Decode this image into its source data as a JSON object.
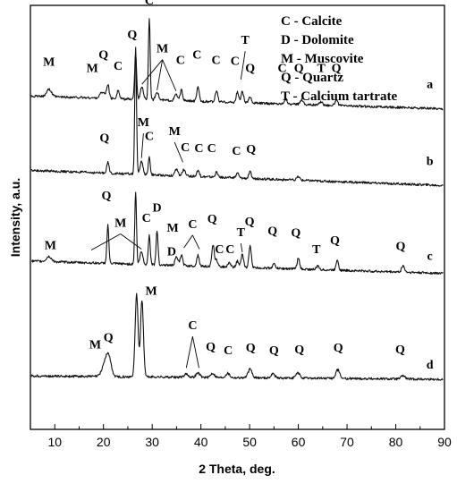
{
  "chart_data": {
    "type": "line",
    "xlabel": "2 Theta, deg.",
    "ylabel": "Intensity, a.u.",
    "xlim": [
      5,
      90
    ],
    "ylim": [
      0,
      100
    ],
    "x_ticks": [
      10,
      20,
      30,
      40,
      50,
      60,
      70,
      80,
      90
    ],
    "grid": false,
    "legend_position": "top-right",
    "legend": [
      {
        "text": "C - Calcite"
      },
      {
        "text": "D - Dolomite"
      },
      {
        "text": "M - Muscovite"
      },
      {
        "text": "Q - Quartz"
      },
      {
        "text": "T - Calcium tartrate"
      }
    ],
    "series": [
      {
        "name": "a",
        "baseline_start": 78.6,
        "baseline_end": 75.6,
        "peaks": [
          {
            "x": 8.8,
            "h": 1.8,
            "w": 0.5
          },
          {
            "x": 19.8,
            "h": 1.5,
            "w": 0.5
          },
          {
            "x": 20.9,
            "h": 3.2,
            "w": 0.25
          },
          {
            "x": 23.0,
            "h": 2.0,
            "w": 0.25
          },
          {
            "x": 26.6,
            "h": 11.0,
            "w": 0.2
          },
          {
            "x": 27.9,
            "h": 3.0,
            "w": 0.3
          },
          {
            "x": 29.4,
            "h": 19.2,
            "w": 0.18
          },
          {
            "x": 31.0,
            "h": 2.0,
            "w": 0.3
          },
          {
            "x": 34.9,
            "h": 1.5,
            "w": 0.3
          },
          {
            "x": 36.0,
            "h": 2.5,
            "w": 0.25
          },
          {
            "x": 39.4,
            "h": 3.2,
            "w": 0.25
          },
          {
            "x": 43.2,
            "h": 2.7,
            "w": 0.25
          },
          {
            "x": 47.5,
            "h": 2.5,
            "w": 0.25
          },
          {
            "x": 48.5,
            "h": 2.7,
            "w": 0.25
          },
          {
            "x": 50.1,
            "h": 1.5,
            "w": 0.25
          },
          {
            "x": 57.4,
            "h": 1.2,
            "w": 0.3
          },
          {
            "x": 60.7,
            "h": 1.2,
            "w": 0.3
          },
          {
            "x": 64.7,
            "h": 0.8,
            "w": 0.3
          },
          {
            "x": 67.8,
            "h": 1.2,
            "w": 0.3
          }
        ],
        "labels": [
          {
            "text": "M",
            "x": 8.8,
            "y": 85.8
          },
          {
            "text": "M",
            "x": 17.7,
            "y": 84.3
          },
          {
            "text": "Q",
            "x": 20.0,
            "y": 87.5
          },
          {
            "text": "C",
            "x": 23.0,
            "y": 84.8
          },
          {
            "text": "Q",
            "x": 25.9,
            "y": 92.2
          },
          {
            "text": "C",
            "x": 29.4,
            "y": 100.2
          },
          {
            "text": "M",
            "x": 32.1,
            "y": 88.9
          },
          {
            "text": "C",
            "x": 35.8,
            "y": 86.2
          },
          {
            "text": "C",
            "x": 39.2,
            "y": 87.5
          },
          {
            "text": "C",
            "x": 43.1,
            "y": 86.2
          },
          {
            "text": "C",
            "x": 47.0,
            "y": 86.0
          },
          {
            "text": "T",
            "x": 49.1,
            "y": 90.9
          },
          {
            "text": "Q",
            "x": 50.1,
            "y": 84.3
          },
          {
            "text": "C",
            "x": 56.7,
            "y": 84.3
          },
          {
            "text": "Q",
            "x": 60.1,
            "y": 84.3
          },
          {
            "text": "T",
            "x": 64.7,
            "y": 84.3
          },
          {
            "text": "Q",
            "x": 67.8,
            "y": 84.3
          },
          {
            "text": "a",
            "x": 87.0,
            "y": 80.5
          }
        ]
      },
      {
        "name": "b",
        "baseline_start": 61.1,
        "baseline_end": 57.5,
        "peaks": [
          {
            "x": 20.9,
            "h": 2.5,
            "w": 0.25
          },
          {
            "x": 26.6,
            "h": 30.0,
            "w": 0.18
          },
          {
            "x": 27.8,
            "h": 3.0,
            "w": 0.3
          },
          {
            "x": 29.4,
            "h": 4.0,
            "w": 0.2
          },
          {
            "x": 35.0,
            "h": 1.5,
            "w": 0.3
          },
          {
            "x": 36.5,
            "h": 1.5,
            "w": 0.3
          },
          {
            "x": 39.4,
            "h": 1.5,
            "w": 0.25
          },
          {
            "x": 43.2,
            "h": 1.2,
            "w": 0.25
          },
          {
            "x": 47.5,
            "h": 1.2,
            "w": 0.25
          },
          {
            "x": 50.1,
            "h": 1.5,
            "w": 0.25
          },
          {
            "x": 60.0,
            "h": 0.8,
            "w": 0.3
          }
        ],
        "labels": [
          {
            "text": "Q",
            "x": 20.2,
            "y": 67.8
          },
          {
            "text": "M",
            "x": 28.2,
            "y": 71.5
          },
          {
            "text": "C",
            "x": 29.4,
            "y": 68.3
          },
          {
            "text": "M",
            "x": 34.6,
            "y": 69.4
          },
          {
            "text": "C",
            "x": 36.8,
            "y": 65.6
          },
          {
            "text": "C",
            "x": 39.6,
            "y": 65.4
          },
          {
            "text": "C",
            "x": 42.2,
            "y": 65.4
          },
          {
            "text": "C",
            "x": 47.3,
            "y": 64.8
          },
          {
            "text": "Q",
            "x": 50.3,
            "y": 65.2
          },
          {
            "text": "b",
            "x": 87.0,
            "y": 62.3
          }
        ]
      },
      {
        "name": "c",
        "baseline_start": 39.7,
        "baseline_end": 36.8,
        "peaks": [
          {
            "x": 8.8,
            "h": 1.2,
            "w": 0.5
          },
          {
            "x": 20.9,
            "h": 9.0,
            "w": 0.2
          },
          {
            "x": 26.6,
            "h": 17.0,
            "w": 0.18
          },
          {
            "x": 27.8,
            "h": 3.0,
            "w": 0.3
          },
          {
            "x": 29.4,
            "h": 7.0,
            "w": 0.2
          },
          {
            "x": 31.0,
            "h": 8.0,
            "w": 0.2
          },
          {
            "x": 35.0,
            "h": 2.0,
            "w": 0.3
          },
          {
            "x": 36.0,
            "h": 2.5,
            "w": 0.25
          },
          {
            "x": 39.4,
            "h": 2.5,
            "w": 0.25
          },
          {
            "x": 42.5,
            "h": 5.0,
            "w": 0.25
          },
          {
            "x": 43.2,
            "h": 1.5,
            "w": 0.25
          },
          {
            "x": 45.8,
            "h": 1.2,
            "w": 0.25
          },
          {
            "x": 47.5,
            "h": 1.5,
            "w": 0.25
          },
          {
            "x": 48.5,
            "h": 3.0,
            "w": 0.25
          },
          {
            "x": 50.1,
            "h": 5.0,
            "w": 0.25
          },
          {
            "x": 55.0,
            "h": 1.0,
            "w": 0.3
          },
          {
            "x": 60.0,
            "h": 2.5,
            "w": 0.25
          },
          {
            "x": 64.0,
            "h": 0.8,
            "w": 0.3
          },
          {
            "x": 68.0,
            "h": 2.5,
            "w": 0.25
          },
          {
            "x": 81.5,
            "h": 1.5,
            "w": 0.3
          }
        ],
        "labels": [
          {
            "text": "M",
            "x": 9.1,
            "y": 42.5
          },
          {
            "text": "Q",
            "x": 20.6,
            "y": 54.2
          },
          {
            "text": "M",
            "x": 23.5,
            "y": 47.8
          },
          {
            "text": "C",
            "x": 28.8,
            "y": 48.9
          },
          {
            "text": "D",
            "x": 31.0,
            "y": 51.4
          },
          {
            "text": "M",
            "x": 34.2,
            "y": 46.6
          },
          {
            "text": "D",
            "x": 34.0,
            "y": 41.0
          },
          {
            "text": "C",
            "x": 38.3,
            "y": 47.5
          },
          {
            "text": "Q",
            "x": 42.3,
            "y": 48.7
          },
          {
            "text": "C",
            "x": 43.8,
            "y": 41.6
          },
          {
            "text": "C",
            "x": 46.0,
            "y": 41.6
          },
          {
            "text": "T",
            "x": 48.2,
            "y": 45.6
          },
          {
            "text": "Q",
            "x": 50.0,
            "y": 48.1
          },
          {
            "text": "Q",
            "x": 54.7,
            "y": 45.9
          },
          {
            "text": "Q",
            "x": 59.5,
            "y": 45.5
          },
          {
            "text": "T",
            "x": 63.7,
            "y": 41.6
          },
          {
            "text": "Q",
            "x": 67.5,
            "y": 43.7
          },
          {
            "text": "Q",
            "x": 81.0,
            "y": 42.3
          },
          {
            "text": "c",
            "x": 87.0,
            "y": 40.0
          }
        ]
      },
      {
        "name": "d",
        "baseline_start": 12.6,
        "baseline_end": 11.8,
        "peaks": [
          {
            "x": 20.3,
            "h": 3.0,
            "w": 0.6
          },
          {
            "x": 21.1,
            "h": 4.0,
            "w": 0.5
          },
          {
            "x": 26.8,
            "h": 19.5,
            "w": 0.3
          },
          {
            "x": 27.9,
            "h": 18.0,
            "w": 0.3
          },
          {
            "x": 37.0,
            "h": 0.8,
            "w": 0.4
          },
          {
            "x": 39.4,
            "h": 1.0,
            "w": 0.4
          },
          {
            "x": 42.4,
            "h": 1.0,
            "w": 0.4
          },
          {
            "x": 45.5,
            "h": 1.0,
            "w": 0.4
          },
          {
            "x": 50.1,
            "h": 2.0,
            "w": 0.4
          },
          {
            "x": 54.8,
            "h": 1.0,
            "w": 0.4
          },
          {
            "x": 59.9,
            "h": 1.2,
            "w": 0.4
          },
          {
            "x": 68.1,
            "h": 2.0,
            "w": 0.4
          },
          {
            "x": 81.5,
            "h": 0.8,
            "w": 0.4
          }
        ],
        "labels": [
          {
            "text": "M",
            "x": 18.3,
            "y": 19.1
          },
          {
            "text": "Q",
            "x": 21.0,
            "y": 20.8
          },
          {
            "text": "M",
            "x": 29.8,
            "y": 31.7
          },
          {
            "text": "C",
            "x": 38.3,
            "y": 23.6
          },
          {
            "text": "Q",
            "x": 42.0,
            "y": 18.6
          },
          {
            "text": "C",
            "x": 45.6,
            "y": 17.7
          },
          {
            "text": "Q",
            "x": 50.2,
            "y": 18.4
          },
          {
            "text": "Q",
            "x": 55.0,
            "y": 17.7
          },
          {
            "text": "Q",
            "x": 60.2,
            "y": 17.9
          },
          {
            "text": "Q",
            "x": 68.2,
            "y": 18.4
          },
          {
            "text": "Q",
            "x": 80.9,
            "y": 17.9
          },
          {
            "text": "d",
            "x": 87.0,
            "y": 14.3
          }
        ]
      }
    ],
    "leader_lines": [
      {
        "from": [
          32.1,
          87.2
        ],
        "to": [
          27.9,
          81.4
        ]
      },
      {
        "from": [
          32.1,
          87.2
        ],
        "to": [
          31.0,
          80.0
        ]
      },
      {
        "from": [
          32.1,
          87.2
        ],
        "to": [
          34.9,
          79.8
        ]
      },
      {
        "from": [
          49.1,
          89.2
        ],
        "to": [
          48.2,
          82.5
        ]
      },
      {
        "from": [
          28.2,
          69.8
        ],
        "to": [
          27.8,
          64.0
        ]
      },
      {
        "from": [
          34.6,
          67.7
        ],
        "to": [
          36.3,
          63.0
        ]
      },
      {
        "from": [
          23.5,
          46.1
        ],
        "to": [
          17.5,
          42.3
        ]
      },
      {
        "from": [
          23.5,
          46.1
        ],
        "to": [
          27.8,
          42.5
        ]
      },
      {
        "from": [
          38.3,
          45.8
        ],
        "to": [
          36.5,
          42.8
        ]
      },
      {
        "from": [
          38.3,
          45.8
        ],
        "to": [
          39.7,
          42.5
        ]
      },
      {
        "from": [
          48.2,
          43.9
        ],
        "to": [
          48.5,
          41.8
        ]
      },
      {
        "from": [
          38.3,
          21.9
        ],
        "to": [
          37.0,
          14.5
        ]
      },
      {
        "from": [
          38.3,
          21.9
        ],
        "to": [
          39.6,
          14.5
        ]
      }
    ]
  }
}
